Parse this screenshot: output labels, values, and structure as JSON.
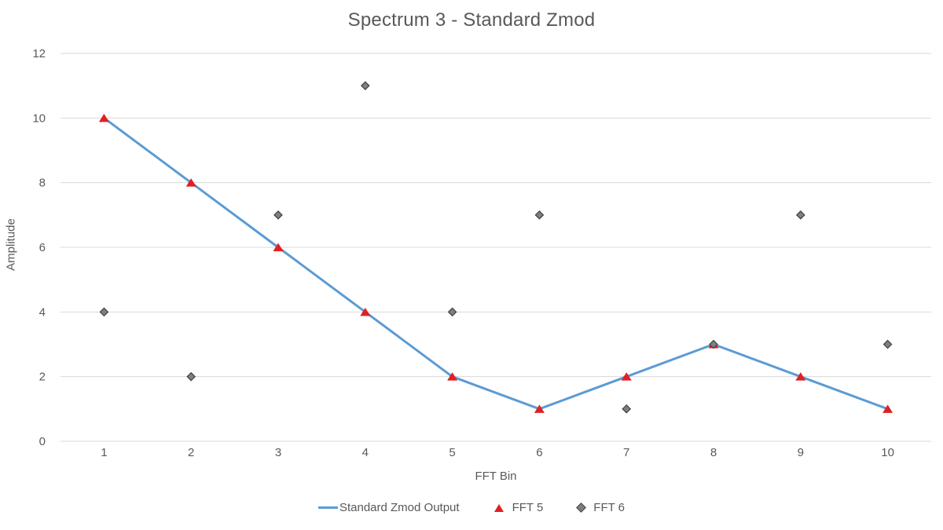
{
  "chart_data": {
    "type": "line",
    "title": "Spectrum 3 - Standard Zmod",
    "xlabel": "FFT Bin",
    "ylabel": "Amplitude",
    "categories": [
      "1",
      "2",
      "3",
      "4",
      "5",
      "6",
      "7",
      "8",
      "9",
      "10"
    ],
    "ylim": [
      0,
      12
    ],
    "ytick_step": 2,
    "yticks": [
      0,
      2,
      4,
      6,
      8,
      10,
      12
    ],
    "grid": "horizontal",
    "legend_position": "bottom",
    "series": [
      {
        "name": "Standard Zmod Output",
        "type": "line",
        "marker": "none",
        "color": "#5b9bd5",
        "line_width": 3,
        "values": [
          10,
          8,
          6,
          4,
          2,
          1,
          2,
          3,
          2,
          1
        ]
      },
      {
        "name": "FFT 5",
        "type": "scatter",
        "marker": "triangle",
        "color": "#e02024",
        "values": [
          10,
          8,
          6,
          4,
          2,
          1,
          2,
          3,
          2,
          1
        ]
      },
      {
        "name": "FFT 6",
        "type": "scatter",
        "marker": "diamond",
        "color": "#7f7f7f",
        "border_color": "#404040",
        "values": [
          4,
          2,
          7,
          11,
          4,
          7,
          1,
          3,
          7,
          3
        ]
      }
    ],
    "colors": {
      "gridline": "#d9d9d9",
      "text": "#595959",
      "background": "#ffffff"
    }
  }
}
